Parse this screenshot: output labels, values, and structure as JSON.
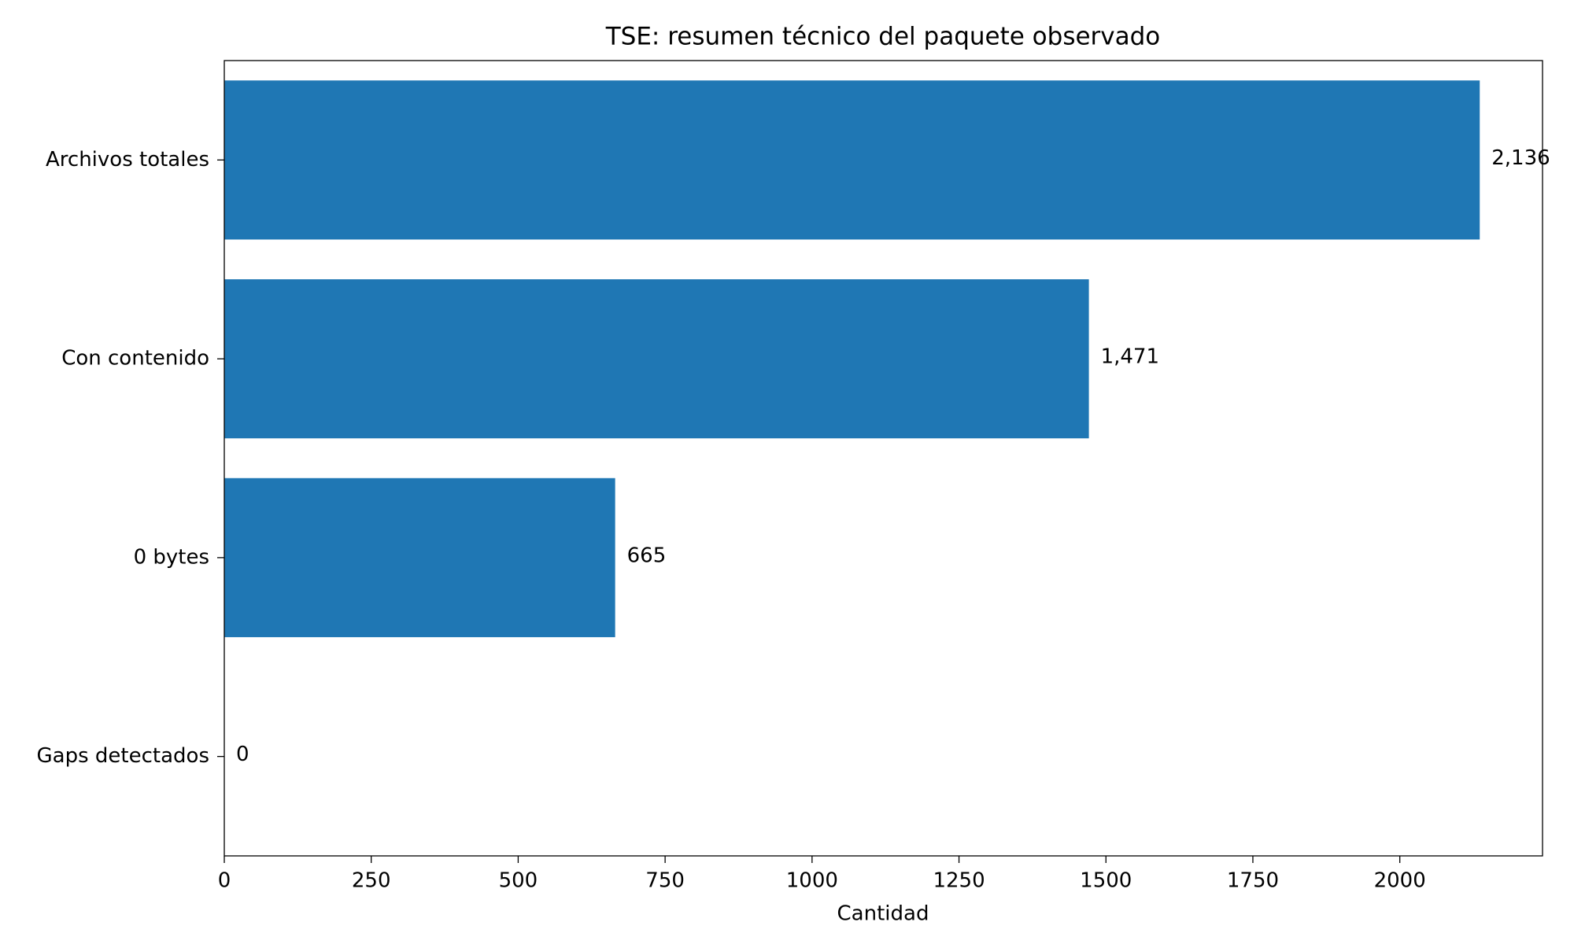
{
  "chart_data": {
    "type": "barh",
    "title": "TSE: resumen técnico del paquete observado",
    "categories": [
      "Archivos totales",
      "Con contenido",
      "0 bytes",
      "Gaps detectados"
    ],
    "values": [
      2136,
      1471,
      665,
      0
    ],
    "value_labels": [
      "2,136",
      "1,471",
      "665",
      "0"
    ],
    "color": "#1f77b4",
    "xlabel": "Cantidad",
    "xlim": [
      0,
      2242.8
    ],
    "xticks": [
      0,
      250,
      500,
      750,
      1000,
      1250,
      1500,
      1750,
      2000
    ]
  }
}
